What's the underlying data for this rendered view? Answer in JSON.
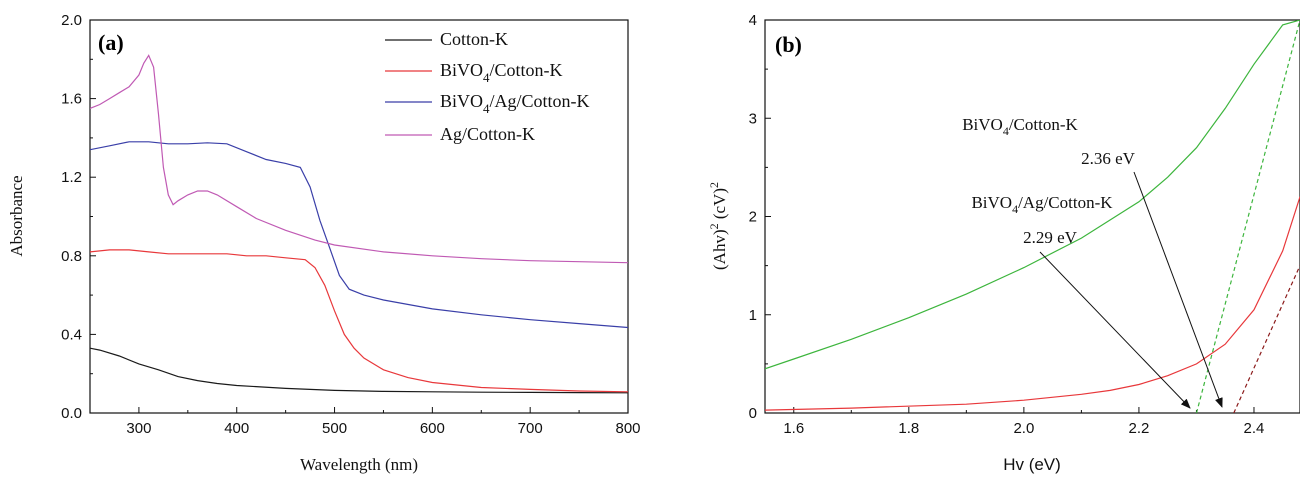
{
  "chart_data": [
    {
      "type": "line",
      "panel_label": "(a)",
      "xlabel": "Wavelength (nm)",
      "ylabel": "Absorbance",
      "xlim": [
        250,
        800
      ],
      "ylim": [
        0.0,
        2.0
      ],
      "xticks": [
        300,
        400,
        500,
        600,
        700,
        800
      ],
      "yticks": [
        0.0,
        0.4,
        0.8,
        1.2,
        1.6,
        2.0
      ],
      "tick_labels_x": [
        "300",
        "400",
        "500",
        "600",
        "700",
        "800"
      ],
      "tick_labels_y": [
        "0.0",
        "0.4",
        "0.8",
        "1.2",
        "1.6",
        "2.0"
      ],
      "grid": false,
      "legend_position": "top-right",
      "series": [
        {
          "name": "Cotton-K",
          "legend_main": "Cotton-K",
          "legend_sub": "",
          "legend_rest": "",
          "color": "#1a1a1a",
          "x": [
            250,
            260,
            280,
            300,
            320,
            340,
            360,
            380,
            400,
            450,
            500,
            550,
            600,
            650,
            700,
            750,
            800
          ],
          "y": [
            0.33,
            0.32,
            0.29,
            0.25,
            0.22,
            0.185,
            0.165,
            0.15,
            0.14,
            0.125,
            0.115,
            0.11,
            0.108,
            0.106,
            0.105,
            0.104,
            0.103
          ]
        },
        {
          "name": "BiVO4/Cotton-K",
          "legend_main": "BiVO",
          "legend_sub": "4",
          "legend_rest": "/Cotton-K",
          "color": "#e8383b",
          "x": [
            250,
            270,
            290,
            310,
            330,
            350,
            370,
            390,
            410,
            430,
            450,
            470,
            480,
            490,
            500,
            510,
            520,
            530,
            550,
            575,
            600,
            650,
            700,
            750,
            800
          ],
          "y": [
            0.82,
            0.83,
            0.83,
            0.82,
            0.81,
            0.81,
            0.81,
            0.81,
            0.8,
            0.8,
            0.79,
            0.78,
            0.74,
            0.65,
            0.52,
            0.4,
            0.33,
            0.28,
            0.22,
            0.18,
            0.155,
            0.13,
            0.12,
            0.112,
            0.108
          ]
        },
        {
          "name": "BiVO4/Ag/Cotton-K",
          "legend_main": "BiVO",
          "legend_sub": "4",
          "legend_rest": "/Ag/Cotton-K",
          "color": "#3a3fa8",
          "x": [
            250,
            270,
            290,
            310,
            330,
            350,
            370,
            390,
            410,
            430,
            450,
            465,
            475,
            485,
            495,
            505,
            515,
            530,
            550,
            600,
            650,
            700,
            750,
            800
          ],
          "y": [
            1.34,
            1.36,
            1.38,
            1.38,
            1.37,
            1.37,
            1.375,
            1.37,
            1.33,
            1.29,
            1.27,
            1.25,
            1.15,
            0.98,
            0.84,
            0.7,
            0.63,
            0.6,
            0.575,
            0.53,
            0.5,
            0.475,
            0.455,
            0.435
          ]
        },
        {
          "name": "Ag/Cotton-K",
          "legend_main": "Ag/Cotton-K",
          "legend_sub": "",
          "legend_rest": "",
          "color": "#c05ab4",
          "x": [
            250,
            260,
            270,
            280,
            290,
            300,
            305,
            310,
            315,
            320,
            325,
            330,
            335,
            340,
            350,
            360,
            370,
            380,
            400,
            420,
            450,
            480,
            500,
            550,
            600,
            650,
            700,
            750,
            800
          ],
          "y": [
            1.55,
            1.57,
            1.6,
            1.63,
            1.66,
            1.72,
            1.78,
            1.82,
            1.76,
            1.52,
            1.25,
            1.11,
            1.06,
            1.08,
            1.11,
            1.13,
            1.13,
            1.11,
            1.05,
            0.99,
            0.93,
            0.88,
            0.855,
            0.82,
            0.8,
            0.785,
            0.775,
            0.77,
            0.765
          ]
        }
      ]
    },
    {
      "type": "line",
      "panel_label": "(b)",
      "xlabel": "Hv (eV)",
      "ylabel_main": "(Ahv)",
      "ylabel_sup1": "2",
      "ylabel_mid": " (cV)",
      "ylabel_sup2": "2",
      "xlim": [
        1.55,
        2.48
      ],
      "ylim": [
        0,
        4
      ],
      "xticks": [
        1.6,
        1.8,
        2.0,
        2.2,
        2.4
      ],
      "yticks": [
        0,
        1,
        2,
        3,
        4
      ],
      "tick_labels_x": [
        "1.6",
        "1.8",
        "2.0",
        "2.2",
        "2.4"
      ],
      "tick_labels_y": [
        "0",
        "1",
        "2",
        "3",
        "4"
      ],
      "grid": false,
      "series": [
        {
          "name": "green curve",
          "color": "#3db53d",
          "x": [
            1.55,
            1.6,
            1.7,
            1.8,
            1.9,
            2.0,
            2.1,
            2.2,
            2.25,
            2.3,
            2.35,
            2.4,
            2.45,
            2.48
          ],
          "y": [
            0.45,
            0.55,
            0.75,
            0.97,
            1.21,
            1.48,
            1.78,
            2.15,
            2.4,
            2.7,
            3.1,
            3.55,
            3.95,
            4.0
          ]
        },
        {
          "name": "red curve",
          "color": "#e8383b",
          "x": [
            1.55,
            1.7,
            1.9,
            2.0,
            2.1,
            2.15,
            2.2,
            2.25,
            2.3,
            2.35,
            2.4,
            2.45,
            2.48
          ],
          "y": [
            0.03,
            0.05,
            0.09,
            0.13,
            0.19,
            0.23,
            0.29,
            0.38,
            0.5,
            0.7,
            1.05,
            1.65,
            2.2
          ]
        },
        {
          "name": "green tangent",
          "color": "#3db53d",
          "dashed": true,
          "x": [
            2.3,
            2.48
          ],
          "y": [
            0,
            4.0
          ]
        },
        {
          "name": "red tangent",
          "color": "#8b1a1a",
          "dashed": true,
          "x": [
            2.365,
            2.48
          ],
          "y": [
            0,
            1.5
          ]
        }
      ],
      "annotations": [
        {
          "line1_main": "BiVO",
          "line1_sub": "4",
          "line1_rest": "/Cotton-K",
          "line2": "2.36 eV",
          "arrow_to": [
            2.37,
            0.0
          ]
        },
        {
          "line1_main": "BiVO",
          "line1_sub": "4",
          "line1_rest": "/Ag/Cotton-K",
          "line2": "2.29 eV",
          "arrow_to": [
            2.3,
            0.0
          ]
        }
      ]
    }
  ]
}
